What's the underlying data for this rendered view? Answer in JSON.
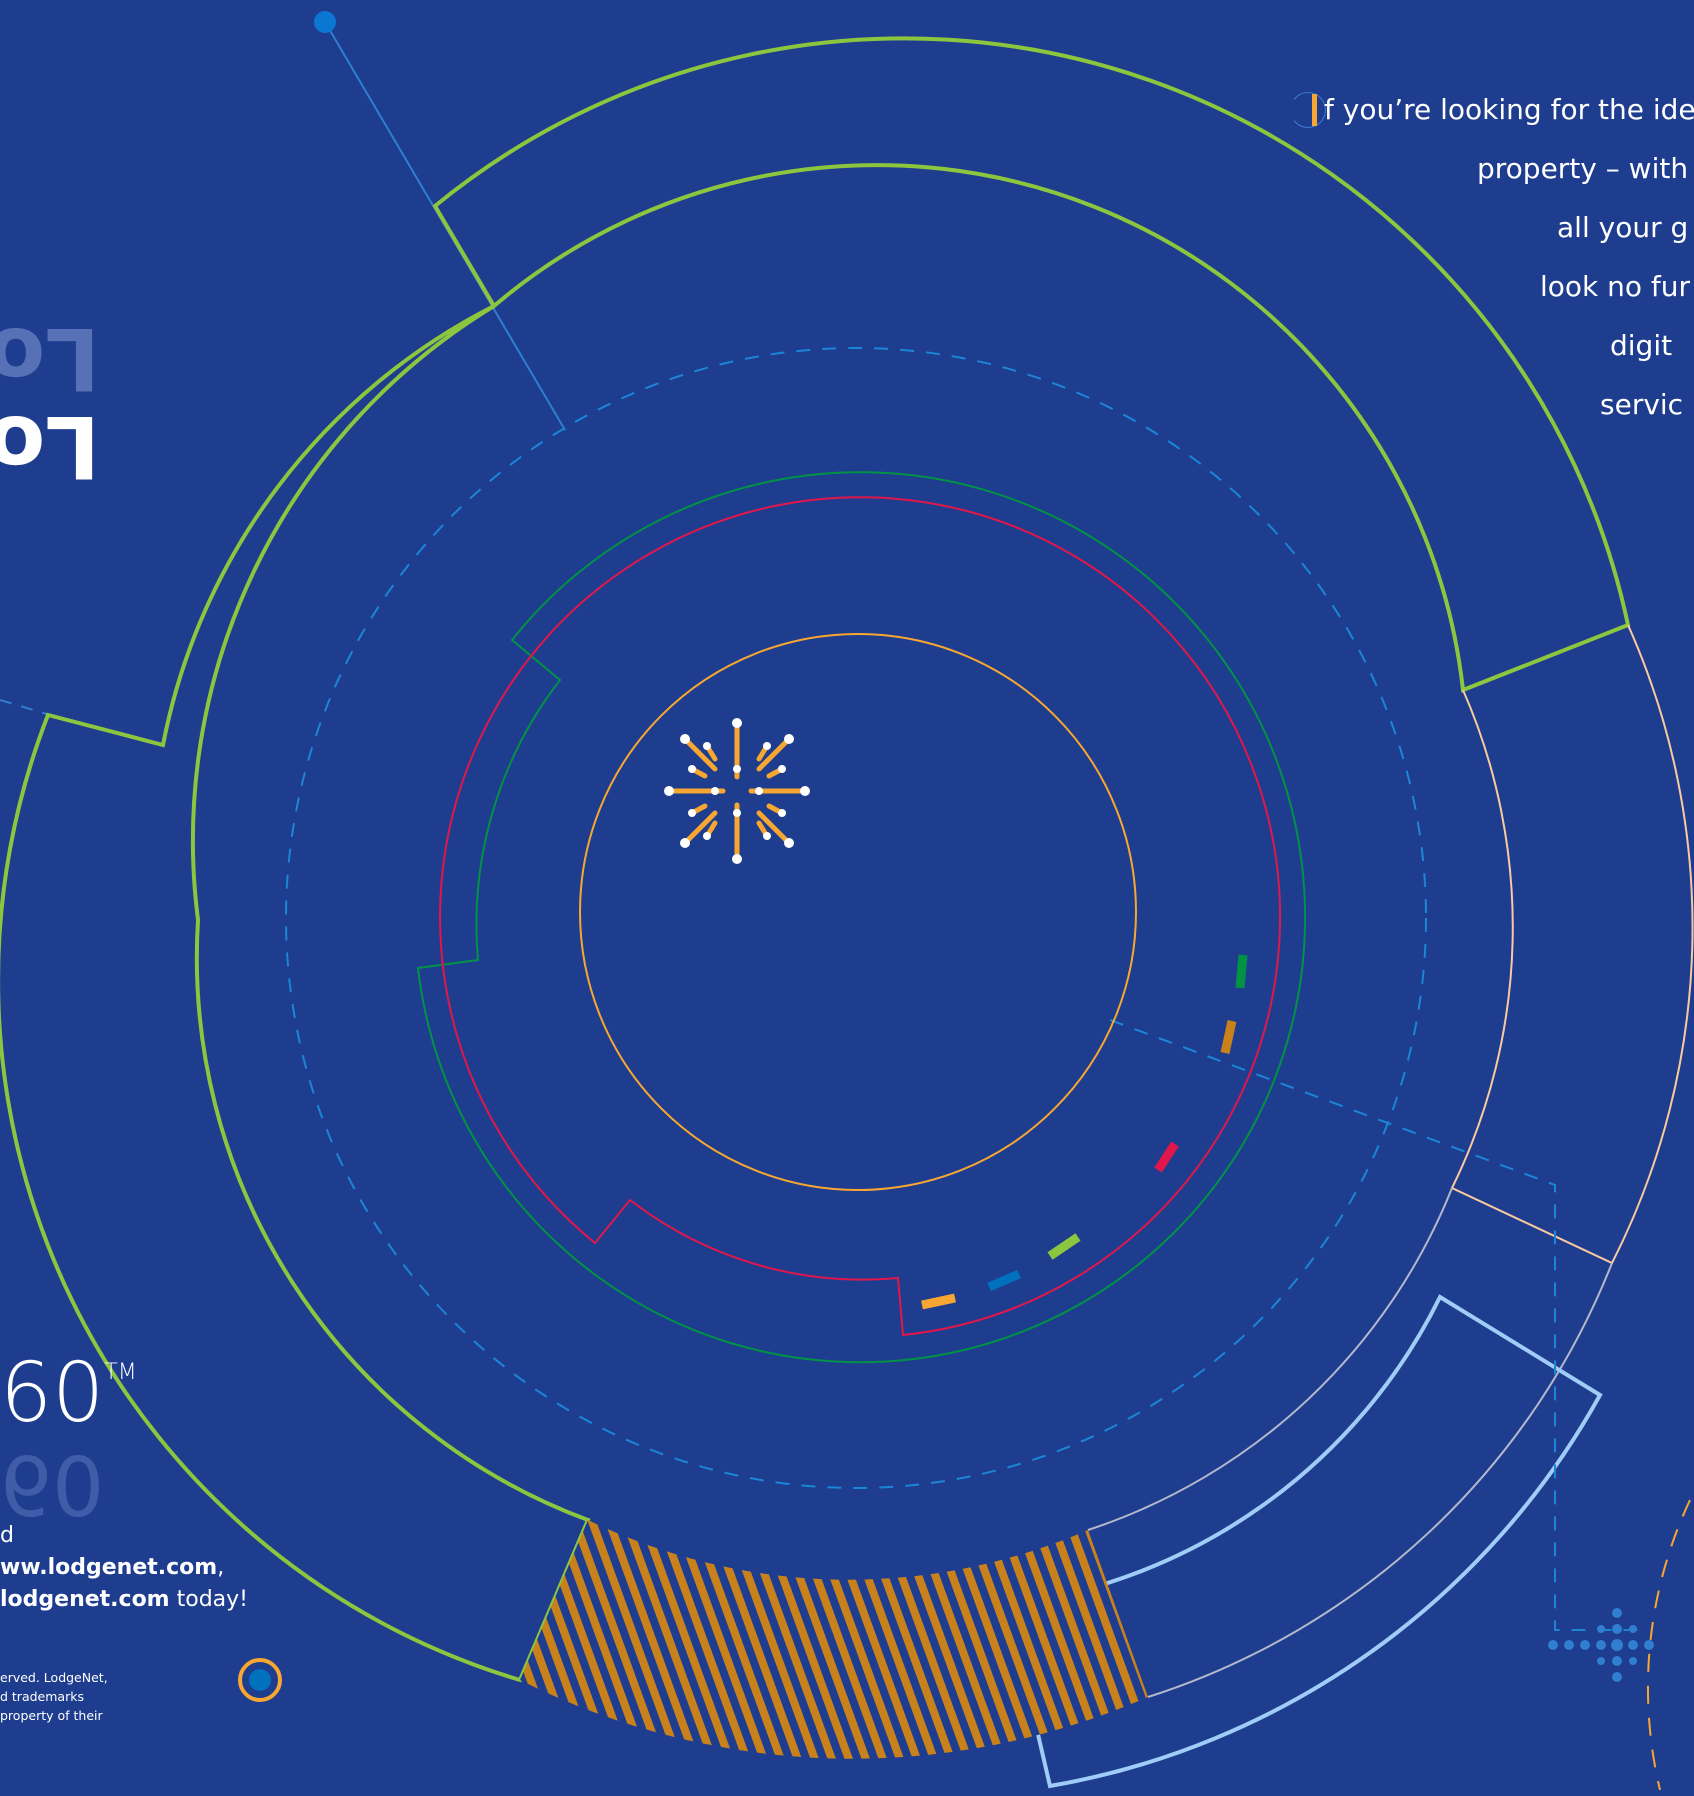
{
  "intro": {
    "lines": [
      "f you’re looking for the ide",
      "property – with d",
      "all your g",
      "look no fur",
      "digit",
      "servic"
    ]
  },
  "heading": {
    "top": "Lo",
    "bottom": "Lo"
  },
  "brand": {
    "number": "60",
    "tm": "TM",
    "reflection": "60"
  },
  "contact": {
    "line1_prefix": "d",
    "url1": "ww.lodgenet.com",
    "line2_sep": ",",
    "url2": "lodgenet.com",
    "line3_suffix": " today!"
  },
  "legal": {
    "lines": [
      "erved. LodgeNet,",
      "d trademarks",
      "property of their"
    ]
  },
  "colors": {
    "background": "#1e3d8f",
    "green": "#8cc63f",
    "orange": "#f7a731",
    "red": "#e0174b",
    "dark_green": "#009245",
    "light_blue": "#9fcdf7",
    "blue": "#0071bc",
    "peach": "#f9c9a0",
    "brown": "#c8811b"
  }
}
